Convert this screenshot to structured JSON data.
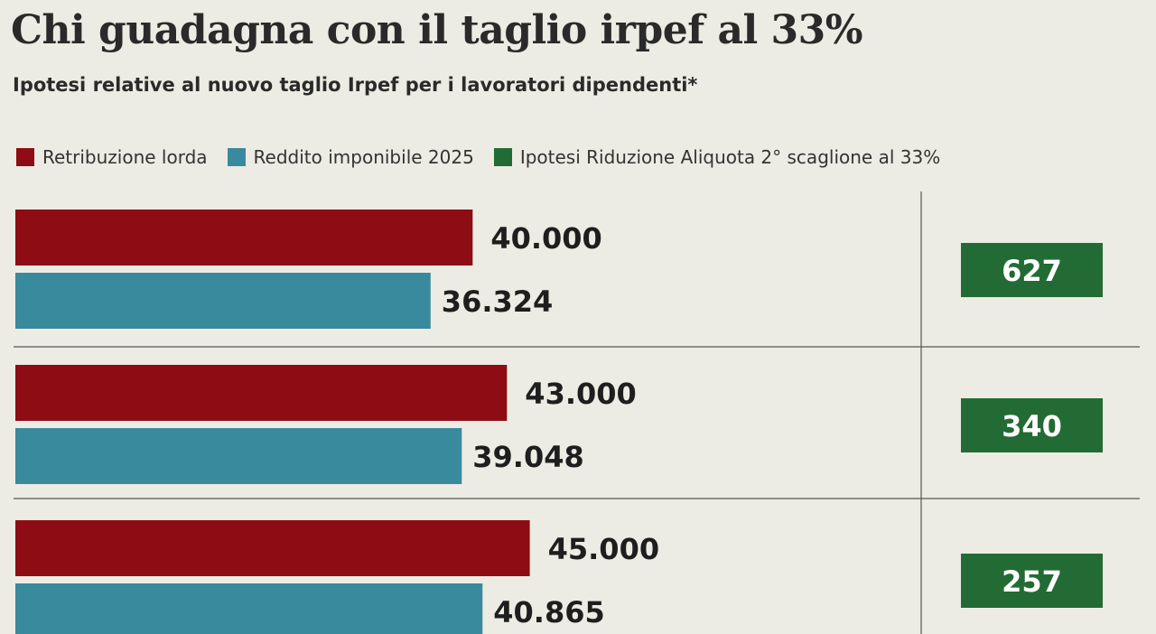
{
  "colors": {
    "lorda": "#8e0c14",
    "imponibile": "#3a8a9e",
    "riduzione": "#236b34",
    "background": "#ecece4"
  },
  "chart_data": {
    "type": "bar",
    "orientation": "horizontal",
    "title": "Chi guadagna con il taglio irpef al 33%",
    "subtitle": "Ipotesi relative al nuovo taglio Irpef per i lavoratori dipendenti*",
    "legend_position": "top",
    "xlim": [
      0,
      80000
    ],
    "categories": [
      "40.000",
      "43.000",
      "45.000"
    ],
    "series": [
      {
        "name": "Retribuzione lorda",
        "color": "#8e0c14",
        "values": [
          40000,
          43000,
          45000
        ],
        "labels": [
          "40.000",
          "43.000",
          "45.000"
        ]
      },
      {
        "name": "Reddito imponibile 2025",
        "color": "#3a8a9e",
        "values": [
          36324,
          39048,
          40865
        ],
        "labels": [
          "36.324",
          "39.048",
          "40.865"
        ]
      },
      {
        "name": "Ipotesi Riduzione Aliquota 2° scaglione al 33%",
        "color": "#236b34",
        "values": [
          627,
          340,
          257
        ],
        "labels": [
          "627",
          "340",
          "257"
        ]
      }
    ]
  }
}
